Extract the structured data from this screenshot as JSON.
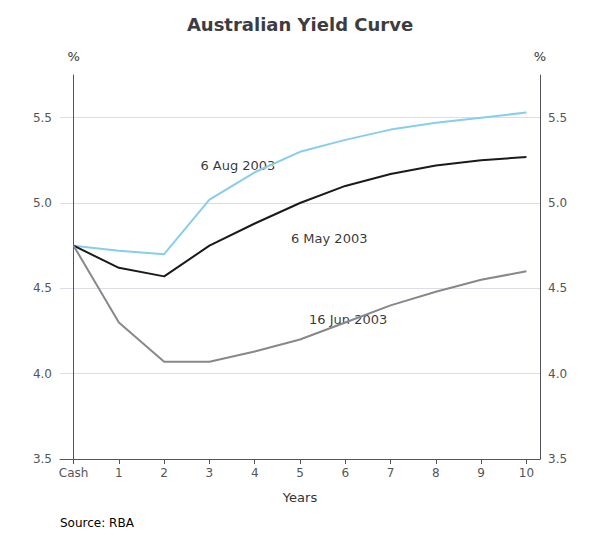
{
  "chart_data": {
    "type": "line",
    "title": "Australian Yield Curve",
    "xlabel": "Years",
    "ylabel": "%",
    "y2label": "%",
    "source": "Source: RBA",
    "x": [
      0,
      1,
      2,
      3,
      4,
      5,
      6,
      7,
      8,
      9,
      10
    ],
    "xlim": [
      -0.3,
      10.3
    ],
    "xticks": [
      {
        "value": 0,
        "label": "Cash"
      },
      1,
      2,
      3,
      4,
      5,
      6,
      7,
      8,
      9,
      10
    ],
    "ylim": [
      3.5,
      5.75
    ],
    "yticks": [
      3.5,
      {
        "value": 4.0,
        "label": "4.0"
      },
      4.5,
      {
        "value": 5.0,
        "label": "5.0"
      },
      5.5
    ],
    "y2lim": [
      3.5,
      5.75
    ],
    "y2ticks": [
      3.5,
      {
        "value": 4.0,
        "label": "4.0"
      },
      4.5,
      {
        "value": 5.0,
        "label": "5.0"
      },
      5.5
    ],
    "grid": true,
    "series": [
      {
        "name": "6 Aug 2003",
        "color": "#87CEEB",
        "values": [
          4.75,
          4.72,
          4.7,
          5.02,
          5.18,
          5.3,
          5.37,
          5.43,
          5.47,
          5.5,
          5.53
        ]
      },
      {
        "name": "6 May 2003",
        "color": "#1a1a1a",
        "values": [
          4.75,
          4.62,
          4.57,
          4.75,
          4.88,
          5.0,
          5.1,
          5.17,
          5.22,
          5.25,
          5.27
        ]
      },
      {
        "name": "16 Jun 2003",
        "color": "#888888",
        "values": [
          4.75,
          4.3,
          4.07,
          4.07,
          4.13,
          4.2,
          4.3,
          4.4,
          4.48,
          4.55,
          4.6
        ]
      }
    ],
    "annotations": [
      {
        "text": "6 Aug 2003",
        "x": 2.8,
        "y": 5.22
      },
      {
        "text": "6 May 2003",
        "x": 4.8,
        "y": 4.79
      },
      {
        "text": "16 Jun 2003",
        "x": 5.2,
        "y": 4.32
      }
    ]
  }
}
